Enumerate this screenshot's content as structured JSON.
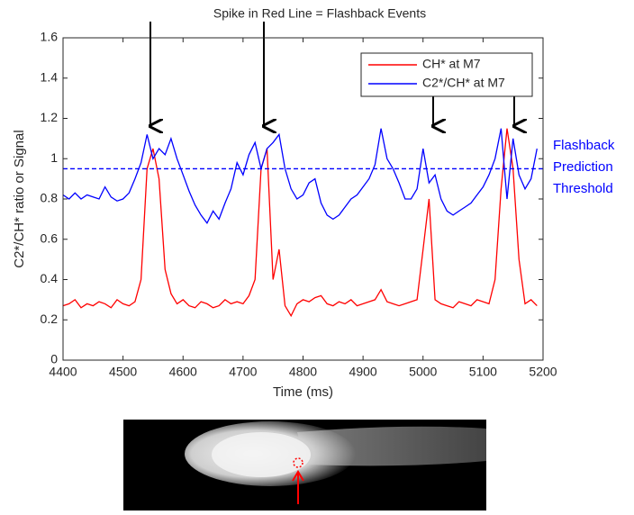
{
  "chart_data": {
    "type": "line",
    "annotation": "Spike in Red Line = Flashback Events",
    "xlabel": "Time (ms)",
    "ylabel": "C2*/CH* ratio or Signal",
    "xlim": [
      4400,
      5200
    ],
    "ylim": [
      0,
      1.6
    ],
    "xticks": [
      4400,
      4500,
      4600,
      4700,
      4800,
      4900,
      5000,
      5100,
      5200
    ],
    "yticks": [
      0,
      0.2,
      0.4,
      0.6,
      0.8,
      1,
      1.2,
      1.4,
      1.6
    ],
    "grid": false,
    "legend": "upper right",
    "threshold": {
      "value": 0.95,
      "color": "#0000ff",
      "label": [
        "Flashback",
        "Prediction",
        "Threshold"
      ]
    },
    "x": [
      4400,
      4410,
      4420,
      4430,
      4440,
      4450,
      4460,
      4470,
      4480,
      4490,
      4500,
      4510,
      4520,
      4530,
      4540,
      4550,
      4560,
      4570,
      4580,
      4590,
      4600,
      4610,
      4620,
      4630,
      4640,
      4650,
      4660,
      4670,
      4680,
      4690,
      4700,
      4710,
      4720,
      4730,
      4740,
      4750,
      4760,
      4770,
      4780,
      4790,
      4800,
      4810,
      4820,
      4830,
      4840,
      4850,
      4860,
      4870,
      4880,
      4890,
      4900,
      4910,
      4920,
      4930,
      4940,
      4950,
      4960,
      4970,
      4980,
      4990,
      5000,
      5010,
      5020,
      5030,
      5040,
      5050,
      5060,
      5070,
      5080,
      5090,
      5100,
      5110,
      5120,
      5130,
      5140,
      5150,
      5160,
      5170,
      5180,
      5190
    ],
    "series": [
      {
        "name": "CH* at M7",
        "color": "#ff0000",
        "values": [
          0.27,
          0.28,
          0.3,
          0.26,
          0.28,
          0.27,
          0.29,
          0.28,
          0.26,
          0.3,
          0.28,
          0.27,
          0.29,
          0.4,
          0.95,
          1.05,
          0.9,
          0.45,
          0.33,
          0.28,
          0.3,
          0.27,
          0.26,
          0.29,
          0.28,
          0.26,
          0.27,
          0.3,
          0.28,
          0.29,
          0.28,
          0.32,
          0.4,
          0.95,
          1.05,
          0.4,
          0.55,
          0.27,
          0.22,
          0.28,
          0.3,
          0.29,
          0.31,
          0.32,
          0.28,
          0.27,
          0.29,
          0.28,
          0.3,
          0.27,
          0.28,
          0.29,
          0.3,
          0.35,
          0.29,
          0.28,
          0.27,
          0.28,
          0.29,
          0.3,
          0.55,
          0.8,
          0.3,
          0.28,
          0.27,
          0.26,
          0.29,
          0.28,
          0.27,
          0.3,
          0.29,
          0.28,
          0.4,
          0.85,
          1.15,
          0.95,
          0.5,
          0.28,
          0.3,
          0.27
        ]
      },
      {
        "name": "C2*/CH* at M7",
        "color": "#0000ff",
        "values": [
          0.82,
          0.8,
          0.83,
          0.8,
          0.82,
          0.81,
          0.8,
          0.86,
          0.81,
          0.79,
          0.8,
          0.83,
          0.9,
          0.98,
          1.12,
          1.0,
          1.05,
          1.02,
          1.1,
          1.0,
          0.92,
          0.84,
          0.77,
          0.72,
          0.68,
          0.74,
          0.7,
          0.78,
          0.85,
          0.98,
          0.92,
          1.02,
          1.08,
          0.95,
          1.05,
          1.08,
          1.12,
          0.95,
          0.85,
          0.8,
          0.82,
          0.88,
          0.9,
          0.78,
          0.72,
          0.7,
          0.72,
          0.76,
          0.8,
          0.82,
          0.86,
          0.9,
          0.97,
          1.15,
          1.0,
          0.95,
          0.88,
          0.8,
          0.8,
          0.85,
          1.05,
          0.88,
          0.92,
          0.8,
          0.74,
          0.72,
          0.74,
          0.76,
          0.78,
          0.82,
          0.86,
          0.92,
          1.0,
          1.15,
          0.8,
          1.1,
          0.92,
          0.85,
          0.9,
          1.05
        ]
      }
    ]
  }
}
